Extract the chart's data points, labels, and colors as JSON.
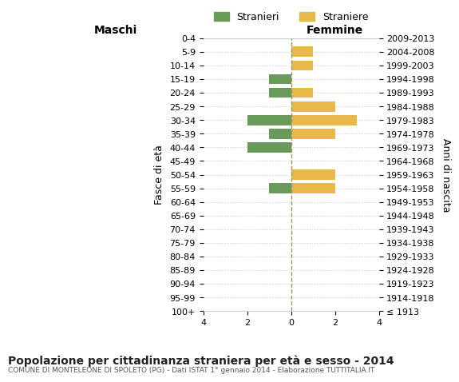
{
  "age_groups": [
    "100+",
    "95-99",
    "90-94",
    "85-89",
    "80-84",
    "75-79",
    "70-74",
    "65-69",
    "60-64",
    "55-59",
    "50-54",
    "45-49",
    "40-44",
    "35-39",
    "30-34",
    "25-29",
    "20-24",
    "15-19",
    "10-14",
    "5-9",
    "0-4"
  ],
  "birth_years": [
    "≤ 1913",
    "1914-1918",
    "1919-1923",
    "1924-1928",
    "1929-1933",
    "1934-1938",
    "1939-1943",
    "1944-1948",
    "1949-1953",
    "1954-1958",
    "1959-1963",
    "1964-1968",
    "1969-1973",
    "1974-1978",
    "1979-1983",
    "1984-1988",
    "1989-1993",
    "1994-1998",
    "1999-2003",
    "2004-2008",
    "2009-2013"
  ],
  "males": [
    0,
    0,
    0,
    0,
    0,
    0,
    0,
    0,
    0,
    1,
    0,
    0,
    2,
    1,
    2,
    0,
    1,
    1,
    0,
    0,
    0
  ],
  "females": [
    0,
    0,
    0,
    0,
    0,
    0,
    0,
    0,
    0,
    2,
    2,
    0,
    0,
    2,
    3,
    2,
    1,
    0,
    1,
    1,
    0
  ],
  "male_color": "#6a9a5a",
  "female_color": "#e8b84b",
  "background_color": "#ffffff",
  "grid_color": "#cccccc",
  "xlim": 4,
  "title": "Popolazione per cittadinanza straniera per età e sesso - 2014",
  "subtitle": "COMUNE DI MONTELEONE DI SPOLETO (PG) - Dati ISTAT 1° gennaio 2014 - Elaborazione TUTTITALIA.IT",
  "xlabel_left": "Maschi",
  "xlabel_right": "Femmine",
  "ylabel_left": "Fasce di età",
  "ylabel_right": "Anni di nascita",
  "legend_stranieri": "Stranieri",
  "legend_straniere": "Straniere",
  "dashed_line_color": "#999966"
}
